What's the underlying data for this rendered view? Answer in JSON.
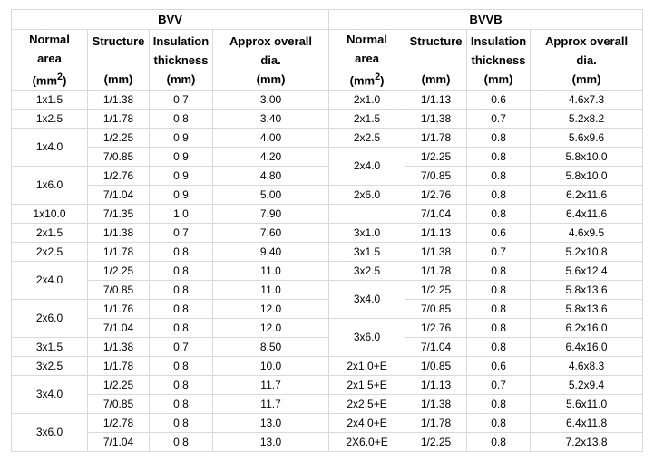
{
  "groups": {
    "left": "BVV",
    "right": "BVVB"
  },
  "headers": {
    "normal_l1": "Normal",
    "normal_l2": "area",
    "normal_l3_pre": "(mm",
    "normal_sup": "2",
    "normal_l3_post": ")",
    "structure": "Structure",
    "mm": "(mm)",
    "ins_l1": "Insulation",
    "ins_l2": "thickness",
    "dia_l1": "Approx overall",
    "dia_l2": "dia."
  },
  "bvv": [
    {
      "area": "1x1.5",
      "structure": [
        "1/1.38"
      ],
      "insulation": [
        "0.7"
      ],
      "dia": [
        "3.00"
      ]
    },
    {
      "area": "1x2.5",
      "structure": [
        "1/1.78"
      ],
      "insulation": [
        "0.8"
      ],
      "dia": [
        "3.40"
      ]
    },
    {
      "area": "1x4.0",
      "structure": [
        "1/2.25",
        "7/0.85"
      ],
      "insulation": [
        "0.9",
        "0.9"
      ],
      "dia": [
        "4.00",
        "4.20"
      ]
    },
    {
      "area": "1x6.0",
      "structure": [
        "1/2.76",
        "7/1.04"
      ],
      "insulation": [
        "0.9",
        "0.9"
      ],
      "dia": [
        "4.80",
        "5.00"
      ]
    },
    {
      "area": "1x10.0",
      "structure": [
        "7/1.35"
      ],
      "insulation": [
        "1.0"
      ],
      "dia": [
        "7.90"
      ]
    },
    {
      "area": "2x1.5",
      "structure": [
        "1/1.38"
      ],
      "insulation": [
        "0.7"
      ],
      "dia": [
        "7.60"
      ]
    },
    {
      "area": "2x2.5",
      "structure": [
        "1/1.78"
      ],
      "insulation": [
        "0.8"
      ],
      "dia": [
        "9.40"
      ]
    },
    {
      "area": "2x4.0",
      "structure": [
        "1/2.25",
        "7/0.85"
      ],
      "insulation": [
        "0.8",
        "0.8"
      ],
      "dia": [
        "11.0",
        "11.0"
      ]
    },
    {
      "area": "2x6.0",
      "structure": [
        "1/1.76",
        "7/1.04"
      ],
      "insulation": [
        "0.8",
        "0.8"
      ],
      "dia": [
        "12.0",
        "12.0"
      ]
    },
    {
      "area": "3x1.5",
      "structure": [
        "1/1.38"
      ],
      "insulation": [
        "0.7"
      ],
      "dia": [
        "8.50"
      ]
    },
    {
      "area": "3x2.5",
      "structure": [
        "1/1.78"
      ],
      "insulation": [
        "0.8"
      ],
      "dia": [
        "10.0"
      ]
    },
    {
      "area": "3x4.0",
      "structure": [
        "1/2.25",
        "7/0.85"
      ],
      "insulation": [
        "0.8",
        "0.8"
      ],
      "dia": [
        "11.7",
        "11.7"
      ]
    },
    {
      "area": "3x6.0",
      "structure": [
        "1/2.78",
        "7/1.04"
      ],
      "insulation": [
        "0.8",
        "0.8"
      ],
      "dia": [
        "13.0",
        "13.0"
      ]
    }
  ],
  "bvvb": [
    {
      "area": "2x1.0",
      "structure": [
        "1/1.13"
      ],
      "insulation": [
        "0.6"
      ],
      "dia": [
        "4.6x7.3"
      ]
    },
    {
      "area": "2x1.5",
      "structure": [
        "1/1.38"
      ],
      "insulation": [
        "0.7"
      ],
      "dia": [
        "5.2x8.2"
      ]
    },
    {
      "area": "2x2.5",
      "structure": [
        "1/1.78"
      ],
      "insulation": [
        "0.8"
      ],
      "dia": [
        "5.6x9.6"
      ]
    },
    {
      "area": "2x4.0",
      "structure": [
        "1/2.25",
        "7/0.85"
      ],
      "insulation": [
        "0.8",
        "0.8"
      ],
      "dia": [
        "5.8x10.0",
        "5.8x10.0"
      ]
    },
    {
      "area": "2x6.0",
      "structure": [
        "1/2.76"
      ],
      "insulation": [
        "0.8"
      ],
      "dia": [
        "6.2x11.6"
      ]
    },
    {
      "area": "",
      "structure": [
        "7/1.04"
      ],
      "insulation": [
        "0.8"
      ],
      "dia": [
        "6.4x11.6"
      ]
    },
    {
      "area": "3x1.0",
      "structure": [
        "1/1.13"
      ],
      "insulation": [
        "0.6"
      ],
      "dia": [
        "4.6x9.5"
      ]
    },
    {
      "area": "3x1.5",
      "structure": [
        "1/1.38"
      ],
      "insulation": [
        "0.7"
      ],
      "dia": [
        "5.2x10.8"
      ]
    },
    {
      "area": "3x2.5",
      "structure": [
        "1/1.78"
      ],
      "insulation": [
        "0.8"
      ],
      "dia": [
        "5.6x12.4"
      ]
    },
    {
      "area": "3x4.0",
      "structure": [
        "1/2.25",
        "7/0.85"
      ],
      "insulation": [
        "0.8",
        "0.8"
      ],
      "dia": [
        "5.8x13.6",
        "5.8x13.6"
      ]
    },
    {
      "area": "3x6.0",
      "structure": [
        "1/2.76",
        "7/1.04"
      ],
      "insulation": [
        "0.8",
        "0.8"
      ],
      "dia": [
        "6.2x16.0",
        "6.4x16.0"
      ]
    },
    {
      "area": "2x1.0+E",
      "structure": [
        "1/0.85"
      ],
      "insulation": [
        "0.6"
      ],
      "dia": [
        "4.6x8.3"
      ]
    },
    {
      "area": "2x1.5+E",
      "structure": [
        "1/1.13"
      ],
      "insulation": [
        "0.7"
      ],
      "dia": [
        "5.2x9.4"
      ]
    },
    {
      "area": "2x2.5+E",
      "structure": [
        "1/1.38"
      ],
      "insulation": [
        "0.8"
      ],
      "dia": [
        "5.6x11.0"
      ]
    },
    {
      "area": "2x4.0+E",
      "structure": [
        "1/1.78"
      ],
      "insulation": [
        "0.8"
      ],
      "dia": [
        "6.4x11.8"
      ]
    },
    {
      "area": "2X6.0+E",
      "structure": [
        "1/2.25"
      ],
      "insulation": [
        "0.8"
      ],
      "dia": [
        "7.2x13.8"
      ]
    }
  ]
}
